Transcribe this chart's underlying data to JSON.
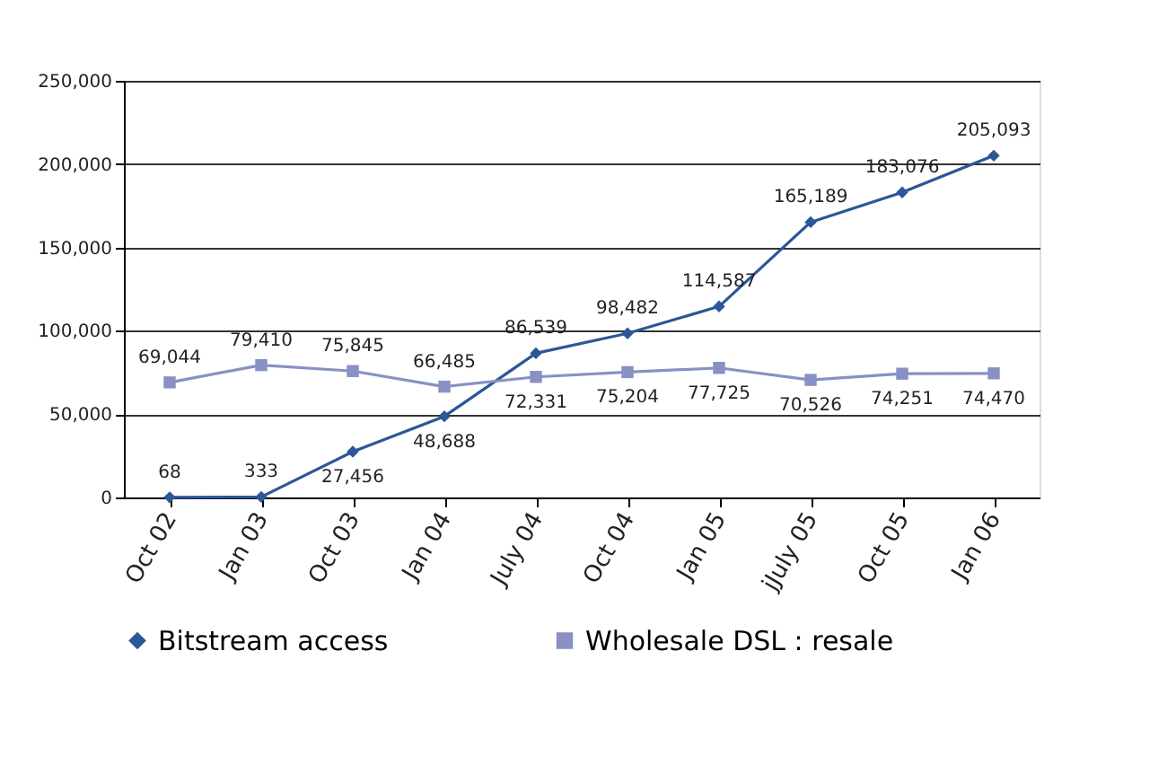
{
  "chart_data": {
    "type": "line",
    "categories": [
      "Oct 02",
      "Jan 03",
      "Oct 03",
      "Jan 04",
      "July 04",
      "Oct 04",
      "Jan 05",
      "jJuly 05",
      "Oct 05",
      "Jan 06"
    ],
    "series": [
      {
        "name": "Bitstream access",
        "color": "#2b5797",
        "marker": "diamond",
        "values": [
          68,
          333,
          27456,
          48688,
          86539,
          98482,
          114587,
          165189,
          183076,
          205093
        ],
        "value_labels": [
          "68",
          "333",
          "27,456",
          "48,688",
          "86,539",
          "98,482",
          "114,587",
          "165,189",
          "183,076",
          "205,093"
        ]
      },
      {
        "name": "Wholesale DSL : resale",
        "color": "#8891c4",
        "marker": "square",
        "values": [
          69044,
          79410,
          75845,
          66485,
          72331,
          75204,
          77725,
          70526,
          74251,
          74470
        ],
        "value_labels": [
          "69,044",
          "79,410",
          "75,845",
          "66,485",
          "72,331",
          "75,204",
          "77,725",
          "70,526",
          "74,251",
          "74,470"
        ]
      }
    ],
    "ylim": [
      0,
      250000
    ],
    "yticks": [
      0,
      {
        "value": 50000,
        "label": "50,000"
      },
      {
        "value": 100000,
        "label": "100,000"
      },
      {
        "value": 150000,
        "label": "150,000"
      },
      {
        "value": 200000,
        "label": "200,000"
      },
      {
        "value": 250000,
        "label": "250,000"
      }
    ],
    "grid": "y",
    "legend": "bottom",
    "line_style": "solid"
  }
}
